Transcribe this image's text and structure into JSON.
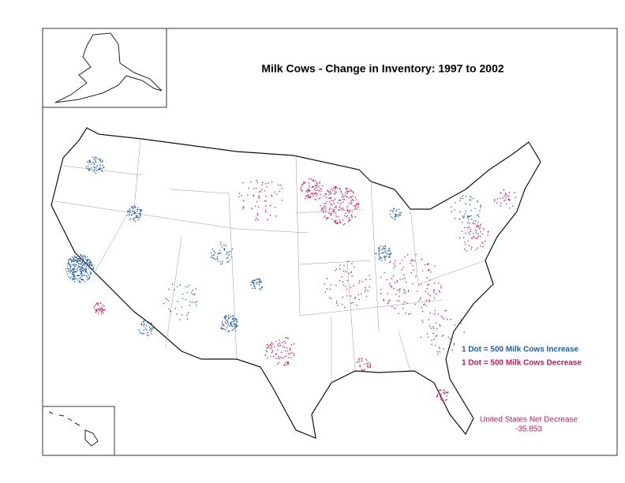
{
  "title": "Milk Cows - Change in Inventory:  1997 to 2002",
  "legend": [
    {
      "label": "1 Dot = 500 Milk Cows Increase",
      "color": "#1f5fa8"
    },
    {
      "label": "1 Dot = 500 Milk Cows Decrease",
      "color": "#c8175a"
    }
  ],
  "note": {
    "label": "United States Net Decrease",
    "value": "-35,853",
    "color": "#c8175a"
  }
}
